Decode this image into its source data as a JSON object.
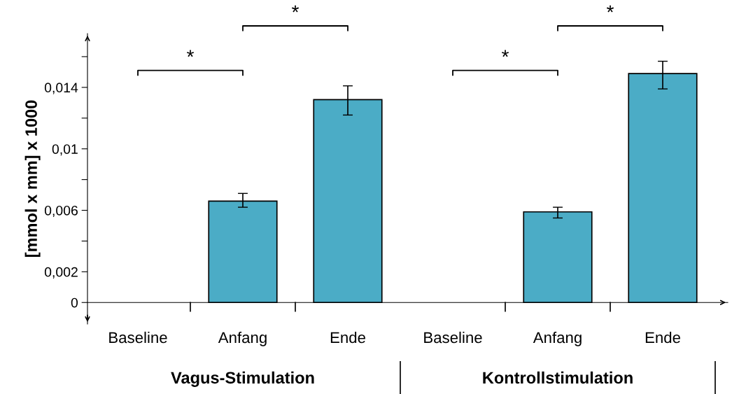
{
  "chart_data": {
    "type": "bar",
    "ylabel": "[mmol x mm] x 1000",
    "categories": [
      "Baseline",
      "Anfang",
      "Ende",
      "Baseline",
      "Anfang",
      "Ende"
    ],
    "values": [
      0,
      0.0066,
      0.0132,
      0,
      0.0059,
      0.0149
    ],
    "errors": [
      null,
      [
        0.0062,
        0.0071
      ],
      [
        0.0122,
        0.0141
      ],
      null,
      [
        0.0055,
        0.0062
      ],
      [
        0.0139,
        0.0157
      ]
    ],
    "color": "#4bacc6",
    "ylim": [
      -0.0014,
      0.0175
    ],
    "yticks": [
      0,
      {
        "value": 0.002,
        "label": "0,002"
      },
      {
        "value": 0.004,
        "label": null
      },
      {
        "value": 0.006,
        "label": "0,006"
      },
      {
        "value": 0.008,
        "label": null
      },
      {
        "value": 0.01,
        "label": "0,01"
      },
      {
        "value": 0.012,
        "label": null
      },
      {
        "value": 0.014,
        "label": "0,014"
      },
      {
        "value": 0.016,
        "label": null
      }
    ],
    "grid": false,
    "annotations": [
      "*",
      "*",
      "*",
      "*",
      "Vagus-Stimulation",
      "Kontrollstimulation"
    ]
  }
}
